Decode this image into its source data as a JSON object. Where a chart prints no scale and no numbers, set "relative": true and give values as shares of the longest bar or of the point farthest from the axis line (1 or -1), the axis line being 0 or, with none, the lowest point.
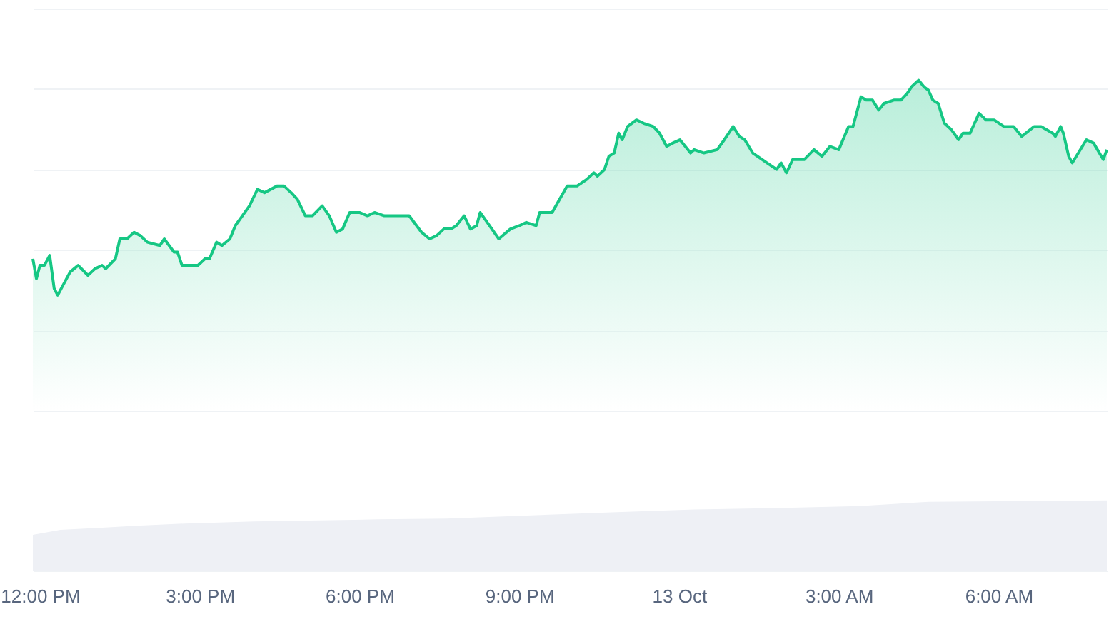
{
  "chart_data": [
    {
      "type": "area",
      "relative": true,
      "grid": "y",
      "xlim": [
        "--10-12T11:52",
        "--10-13T08:02"
      ],
      "x": [
        "--10-12T11:52",
        "--10-12T11:56",
        "--10-12T12:00",
        "--10-12T12:05",
        "--10-12T12:11",
        "--10-12T12:16",
        "--10-12T12:20",
        "--10-12T12:26",
        "--10-12T12:34",
        "--10-12T12:43",
        "--10-12T12:54",
        "--10-12T13:02",
        "--10-12T13:10",
        "--10-12T13:14",
        "--10-12T13:25",
        "--10-12T13:30",
        "--10-12T13:38",
        "--10-12T13:46",
        "--10-12T13:53",
        "--10-12T14:01",
        "--10-12T14:15",
        "--10-12T14:20",
        "--10-12T14:31",
        "--10-12T14:35",
        "--10-12T14:40",
        "--10-12T14:50",
        "--10-12T14:58",
        "--10-12T15:06",
        "--10-12T15:11",
        "--10-12T15:19",
        "--10-12T15:25",
        "--10-12T15:34",
        "--10-12T15:40",
        "--10-12T15:48",
        "--10-12T15:56",
        "--10-12T16:05",
        "--10-12T16:13",
        "--10-12T16:27",
        "--10-12T16:35",
        "--10-12T16:43",
        "--10-12T16:50",
        "--10-12T16:59",
        "--10-12T17:07",
        "--10-12T17:18",
        "--10-12T17:26",
        "--10-12T17:34",
        "--10-12T17:41",
        "--10-12T17:49",
        "--10-12T18:00",
        "--10-12T18:09",
        "--10-12T18:17",
        "--10-12T18:28",
        "--10-12T18:31",
        "--10-12T18:43",
        "--10-12T18:56",
        "--10-12T19:10",
        "--10-12T19:19",
        "--10-12T19:27",
        "--10-12T19:35",
        "--10-12T19:43",
        "--10-12T19:49",
        "--10-12T19:58",
        "--10-12T20:05",
        "--10-12T20:12",
        "--10-12T20:16",
        "--10-12T20:24",
        "--10-12T20:37",
        "--10-12T20:50",
        "--10-12T21:00",
        "--10-12T21:08",
        "--10-12T21:19",
        "--10-12T21:23",
        "--10-12T21:37",
        "--10-12T21:54",
        "--10-12T22:05",
        "--10-12T22:16",
        "--10-12T22:24",
        "--10-12T22:28",
        "--10-12T22:36",
        "--10-12T22:41",
        "--10-12T22:47",
        "--10-12T22:52",
        "--10-12T22:56",
        "--10-12T23:02",
        "--10-12T23:12",
        "--10-12T23:20",
        "--10-12T23:31",
        "--10-12T23:38",
        "--10-12T23:46",
        "--10-12T23:53",
        "--10-13T00:01",
        "--10-13T00:13",
        "--10-13T00:17",
        "--10-13T00:28",
        "--10-13T00:43",
        "--10-13T00:51",
        "--10-13T01:01",
        "--10-13T01:08",
        "--10-13T01:14",
        "--10-13T01:23",
        "--10-13T01:39",
        "--10-13T01:50",
        "--10-13T01:55",
        "--10-13T02:01",
        "--10-13T02:08",
        "--10-13T02:21",
        "--10-13T02:32",
        "--10-13T02:41",
        "--10-13T02:50",
        "--10-13T03:00",
        "--10-13T03:11",
        "--10-13T03:16",
        "--10-13T03:25",
        "--10-13T03:31",
        "--10-13T03:38",
        "--10-13T03:45",
        "--10-13T03:51",
        "--10-13T04:02",
        "--10-13T04:10",
        "--10-13T04:17",
        "--10-13T04:22",
        "--10-13T04:30",
        "--10-13T04:36",
        "--10-13T04:41",
        "--10-13T04:46",
        "--10-13T04:52",
        "--10-13T04:59",
        "--10-13T05:07",
        "--10-13T05:15",
        "--10-13T05:20",
        "--10-13T05:28",
        "--10-13T05:38",
        "--10-13T05:46",
        "--10-13T05:55",
        "--10-13T06:06",
        "--10-13T06:17",
        "--10-13T06:26",
        "--10-13T06:40",
        "--10-13T06:48",
        "--10-13T07:01",
        "--10-13T07:04",
        "--10-13T07:10",
        "--10-13T07:13",
        "--10-13T07:19",
        "--10-13T07:23",
        "--10-13T07:39",
        "--10-13T07:47",
        "--10-13T07:58",
        "--10-13T08:02"
      ],
      "series": [
        {
          "color": "#16c784",
          "values": [
            0.46,
            0.4,
            0.44,
            0.44,
            0.47,
            0.37,
            0.35,
            0.38,
            0.42,
            0.44,
            0.41,
            0.43,
            0.44,
            0.43,
            0.46,
            0.52,
            0.52,
            0.54,
            0.53,
            0.51,
            0.5,
            0.52,
            0.48,
            0.48,
            0.44,
            0.44,
            0.44,
            0.46,
            0.46,
            0.51,
            0.5,
            0.52,
            0.56,
            0.59,
            0.62,
            0.67,
            0.66,
            0.68,
            0.68,
            0.66,
            0.64,
            0.59,
            0.59,
            0.62,
            0.59,
            0.54,
            0.55,
            0.6,
            0.6,
            0.59,
            0.6,
            0.59,
            0.59,
            0.59,
            0.59,
            0.54,
            0.52,
            0.53,
            0.55,
            0.55,
            0.56,
            0.59,
            0.55,
            0.56,
            0.6,
            0.57,
            0.52,
            0.55,
            0.56,
            0.57,
            0.56,
            0.6,
            0.6,
            0.68,
            0.68,
            0.7,
            0.72,
            0.71,
            0.73,
            0.77,
            0.78,
            0.84,
            0.82,
            0.86,
            0.88,
            0.87,
            0.86,
            0.84,
            0.8,
            0.81,
            0.82,
            0.78,
            0.79,
            0.78,
            0.79,
            0.82,
            0.86,
            0.83,
            0.82,
            0.78,
            0.75,
            0.73,
            0.75,
            0.72,
            0.76,
            0.76,
            0.79,
            0.77,
            0.8,
            0.79,
            0.86,
            0.86,
            0.95,
            0.94,
            0.94,
            0.91,
            0.93,
            0.94,
            0.94,
            0.96,
            0.98,
            1,
            0.98,
            0.97,
            0.94,
            0.93,
            0.87,
            0.85,
            0.82,
            0.84,
            0.84,
            0.9,
            0.88,
            0.88,
            0.86,
            0.86,
            0.83,
            0.86,
            0.86,
            0.84,
            0.83,
            0.86,
            0.84,
            0.77,
            0.75,
            0.82,
            0.81,
            0.76,
            0.79
          ]
        }
      ]
    },
    {
      "type": "area",
      "relative": true,
      "xlim": [
        "--10-12T11:52",
        "--10-13T08:02"
      ],
      "xticks": [
        {
          "value": "--10-12T12:00",
          "label": "12:00 PM"
        },
        {
          "value": "--10-12T15:00",
          "label": "3:00 PM"
        },
        {
          "value": "--10-12T18:00",
          "label": "6:00 PM"
        },
        {
          "value": "--10-12T21:00",
          "label": "9:00 PM"
        },
        {
          "value": "--10-13T00:00",
          "label": "13 Oct"
        },
        {
          "value": "--10-13T03:00",
          "label": "3:00 AM"
        },
        {
          "value": "--10-13T06:00",
          "label": "6:00 AM"
        }
      ],
      "x": [
        "--10-12T11:52",
        "--10-12T12:23",
        "--10-12T13:10",
        "--10-12T13:49",
        "--10-12T14:43",
        "--10-12T16:01",
        "--10-12T18:20",
        "--10-12T19:38",
        "--10-12T22:44",
        "--10-13T00:17",
        "--10-13T01:50",
        "--10-13T03:23",
        "--10-13T04:41",
        "--10-13T08:02"
      ],
      "series": [
        {
          "color": "#eef0f5",
          "values": [
            0.51,
            0.58,
            0.61,
            0.64,
            0.67,
            0.7,
            0.73,
            0.74,
            0.83,
            0.87,
            0.89,
            0.92,
            0.98,
            1
          ]
        }
      ]
    }
  ]
}
